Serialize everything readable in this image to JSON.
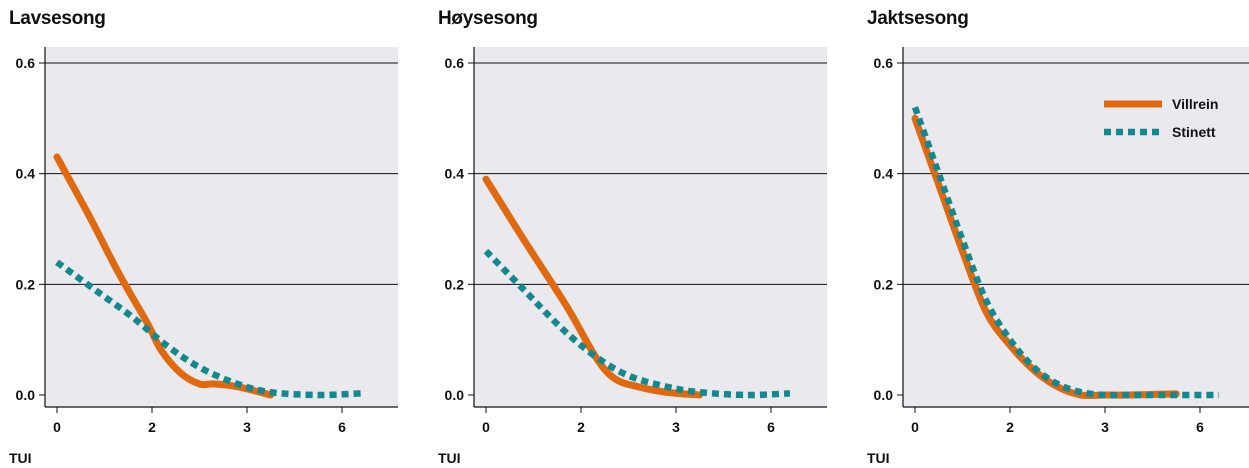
{
  "chart_data": [
    {
      "type": "line",
      "title": "Lavsesong",
      "xlabel": "TUI",
      "ylabel": "",
      "x_ticks": [
        "0",
        "2",
        "3",
        "6"
      ],
      "y_ticks": [
        "0.0",
        "0.2",
        "0.4",
        "0.6"
      ],
      "ylim": [
        0,
        0.6
      ],
      "grid": "horizontal",
      "legend": false,
      "series": [
        {
          "name": "Villrein",
          "color": "#e0690f",
          "style": "solid",
          "x": [
            0,
            0.7,
            1.3,
            1.9,
            2.2,
            2.6,
            3.0,
            3.3,
            3.8,
            4.5
          ],
          "y": [
            0.43,
            0.32,
            0.22,
            0.13,
            0.08,
            0.04,
            0.02,
            0.02,
            0.015,
            0.0
          ]
        },
        {
          "name": "Stinett",
          "color": "#13898f",
          "style": "dotted",
          "x": [
            0,
            0.8,
            1.6,
            2.3,
            3.0,
            3.8,
            4.5,
            5.5,
            6.4
          ],
          "y": [
            0.24,
            0.19,
            0.14,
            0.09,
            0.05,
            0.02,
            0.005,
            0.0,
            0.003
          ]
        }
      ]
    },
    {
      "type": "line",
      "title": "Høysesong",
      "xlabel": "TUI",
      "ylabel": "",
      "x_ticks": [
        "0",
        "2",
        "3",
        "6"
      ],
      "y_ticks": [
        "0.0",
        "0.2",
        "0.4",
        "0.6"
      ],
      "ylim": [
        0,
        0.6
      ],
      "grid": "horizontal",
      "legend": false,
      "series": [
        {
          "name": "Villrein",
          "color": "#e0690f",
          "style": "solid",
          "x": [
            0,
            0.8,
            1.7,
            2.3,
            2.7,
            3.2,
            3.8,
            4.5
          ],
          "y": [
            0.39,
            0.28,
            0.16,
            0.07,
            0.03,
            0.015,
            0.005,
            0.0
          ]
        },
        {
          "name": "Stinett",
          "color": "#13898f",
          "style": "dotted",
          "x": [
            0,
            0.8,
            1.6,
            2.3,
            3.0,
            3.8,
            4.5,
            5.5,
            6.4
          ],
          "y": [
            0.26,
            0.19,
            0.12,
            0.07,
            0.035,
            0.015,
            0.005,
            0.0,
            0.003
          ]
        }
      ]
    },
    {
      "type": "line",
      "title": "Jaktsesong",
      "xlabel": "TUI",
      "ylabel": "",
      "x_ticks": [
        "0",
        "2",
        "3",
        "6"
      ],
      "y_ticks": [
        "0.0",
        "0.2",
        "0.4",
        "0.6"
      ],
      "ylim": [
        0,
        0.6
      ],
      "grid": "horizontal",
      "legend": true,
      "legend_position": "top-right",
      "series": [
        {
          "name": "Villrein",
          "color": "#e0690f",
          "style": "solid",
          "x": [
            0,
            0.5,
            1.0,
            1.5,
            2.0,
            2.5,
            3.0,
            3.5,
            4.0,
            4.5,
            5.5
          ],
          "y": [
            0.5,
            0.38,
            0.26,
            0.15,
            0.09,
            0.045,
            0.015,
            0.0,
            0.0,
            0.0,
            0.002
          ]
        },
        {
          "name": "Stinett",
          "color": "#13898f",
          "style": "dotted",
          "x": [
            0,
            0.5,
            1.0,
            1.5,
            2.0,
            2.5,
            3.0,
            3.5,
            4.0,
            4.5,
            5.5,
            6.4
          ],
          "y": [
            0.52,
            0.4,
            0.28,
            0.17,
            0.1,
            0.05,
            0.02,
            0.005,
            0.0,
            0.0,
            0.0,
            0.0
          ]
        }
      ]
    }
  ]
}
